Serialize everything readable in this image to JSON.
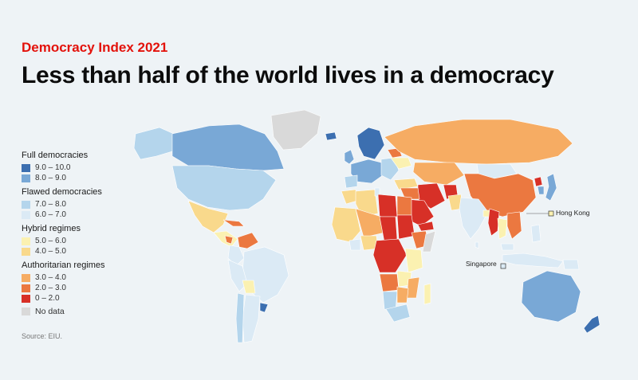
{
  "header": {
    "kicker": "Democracy Index 2021",
    "title": "Less than half of the world lives in a democracy"
  },
  "legend": {
    "groups": [
      {
        "title": "Full democracies",
        "items": [
          {
            "label": "9.0 – 10.0",
            "color": "#3c6fb0"
          },
          {
            "label": "8.0 – 9.0",
            "color": "#79a8d6"
          }
        ]
      },
      {
        "title": "Flawed democracies",
        "items": [
          {
            "label": "7.0 – 8.0",
            "color": "#b4d5ec"
          },
          {
            "label": "6.0 – 7.0",
            "color": "#dbeaf5"
          }
        ]
      },
      {
        "title": "Hybrid regimes",
        "items": [
          {
            "label": "5.0 – 6.0",
            "color": "#fbf1b1"
          },
          {
            "label": "4.0 – 5.0",
            "color": "#f9d98c"
          }
        ]
      },
      {
        "title": "Authoritarian regimes",
        "items": [
          {
            "label": "3.0 – 4.0",
            "color": "#f6ac63"
          },
          {
            "label": "2.0 – 3.0",
            "color": "#eb7840"
          },
          {
            "label": "0 – 2.0",
            "color": "#d73027"
          }
        ]
      }
    ],
    "nodata": {
      "label": "No data",
      "color": "#d9d9d9"
    }
  },
  "callouts": {
    "hong_kong": "Hong Kong",
    "singapore": "Singapore"
  },
  "source": "Source: EIU."
}
